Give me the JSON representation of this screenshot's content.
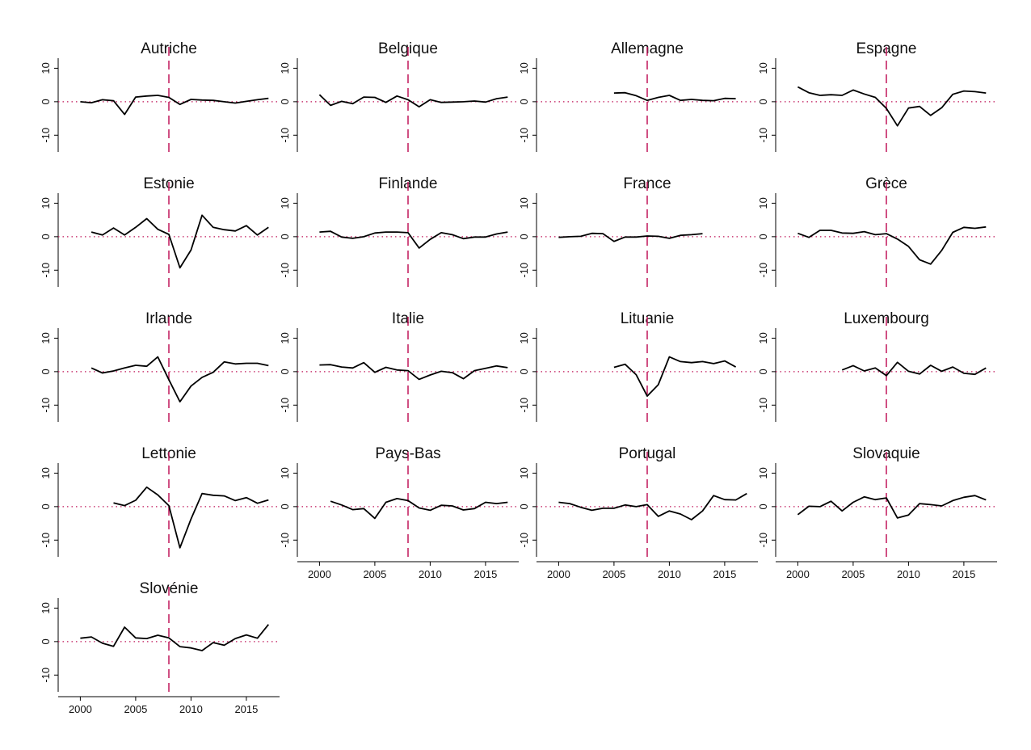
{
  "chart_data": {
    "type": "line",
    "layout": "small-multiples",
    "columns": 4,
    "x_range": [
      1998,
      2018
    ],
    "y_range": [
      -15,
      13
    ],
    "x_ticks": [
      2000,
      2005,
      2010,
      2015
    ],
    "y_ticks": [
      10,
      0,
      -10
    ],
    "reference_year": 2008,
    "reference_line_color": "#c0175a",
    "zero_line_color": "#c0175a",
    "series_color": "#000000",
    "panels": [
      {
        "title": "Autriche",
        "x_start": 2000,
        "values": [
          0,
          -0.3,
          0.6,
          0.3,
          -3.8,
          1.4,
          1.7,
          1.9,
          1.3,
          -0.8,
          0.7,
          0.5,
          0.4,
          0.0,
          -0.4,
          0.1,
          0.6,
          1.0
        ]
      },
      {
        "title": "Belgique",
        "x_start": 2000,
        "values": [
          2.1,
          -1.1,
          0.1,
          -0.6,
          1.4,
          1.3,
          -0.2,
          1.7,
          0.6,
          -1.5,
          0.6,
          -0.2,
          -0.1,
          0.0,
          0.2,
          -0.1,
          0.9,
          1.4
        ]
      },
      {
        "title": "Allemagne",
        "x_start": 2005,
        "values": [
          2.6,
          2.7,
          1.8,
          0.4,
          1.3,
          1.9,
          0.4,
          0.7,
          0.4,
          0.3,
          1.0,
          0.9
        ]
      },
      {
        "title": "Espagne",
        "x_start": 2000,
        "values": [
          4.4,
          2.7,
          1.9,
          2.1,
          1.9,
          3.5,
          2.3,
          1.3,
          -2.0,
          -7.2,
          -1.9,
          -1.4,
          -4.1,
          -1.8,
          2.2,
          3.2,
          3.0,
          2.6
        ]
      },
      {
        "title": "Estonie",
        "x_start": 2001,
        "values": [
          1.4,
          0.5,
          2.6,
          0.5,
          2.8,
          5.4,
          2.2,
          0.7,
          -9.3,
          -4.0,
          6.4,
          2.8,
          2.1,
          1.7,
          3.3,
          0.5,
          2.8
        ]
      },
      {
        "title": "Finlande",
        "x_start": 2000,
        "values": [
          1.4,
          1.6,
          -0.1,
          -0.5,
          0.0,
          1.1,
          1.4,
          1.4,
          1.2,
          -3.4,
          -0.8,
          1.2,
          0.6,
          -0.6,
          -0.1,
          -0.1,
          0.8,
          1.4
        ]
      },
      {
        "title": "France",
        "x_start": 2000,
        "values": [
          -0.2,
          0.0,
          0.1,
          1.0,
          0.9,
          -1.4,
          -0.1,
          -0.1,
          0.2,
          0.1,
          -0.5,
          0.4,
          0.6,
          0.9
        ]
      },
      {
        "title": "Grèce",
        "x_start": 2000,
        "values": [
          1.0,
          -0.2,
          1.9,
          1.9,
          1.1,
          1.0,
          1.5,
          0.6,
          0.9,
          -0.7,
          -2.9,
          -6.9,
          -8.2,
          -4.1,
          1.3,
          2.8,
          2.5,
          2.9
        ]
      },
      {
        "title": "Irlande",
        "x_start": 2001,
        "values": [
          1.1,
          -0.4,
          0.2,
          1.1,
          1.9,
          1.6,
          4.4,
          -2.4,
          -9.0,
          -4.3,
          -1.7,
          -0.2,
          2.9,
          2.3,
          2.5,
          2.5,
          1.8
        ]
      },
      {
        "title": "Italie",
        "x_start": 2000,
        "values": [
          2.0,
          2.1,
          1.4,
          1.1,
          2.7,
          -0.2,
          1.3,
          0.5,
          0.3,
          -2.3,
          -1.0,
          0.1,
          -0.3,
          -2.1,
          0.3,
          1.0,
          1.7,
          1.2
        ]
      },
      {
        "title": "Lituanie",
        "x_start": 2005,
        "values": [
          1.3,
          2.2,
          -0.9,
          -7.3,
          -3.9,
          4.4,
          3.0,
          2.7,
          3.0,
          2.4,
          3.2,
          1.4
        ]
      },
      {
        "title": "Luxembourg",
        "x_start": 2004,
        "values": [
          0.5,
          1.8,
          0.2,
          1.1,
          -1.2,
          2.8,
          0.1,
          -0.7,
          1.9,
          0.1,
          1.4,
          -0.5,
          -0.8,
          1.1
        ]
      },
      {
        "title": "Lettonie",
        "x_start": 2003,
        "values": [
          1.1,
          0.3,
          1.9,
          5.8,
          3.5,
          0.3,
          -12.3,
          -3.7,
          3.9,
          3.4,
          3.2,
          1.8,
          2.7,
          1.0,
          2.0
        ]
      },
      {
        "title": "Pays-Bas",
        "x_start": 2001,
        "values": [
          1.6,
          0.5,
          -0.9,
          -0.6,
          -3.5,
          1.3,
          2.4,
          1.8,
          -0.4,
          -1.1,
          0.4,
          0.2,
          -1.0,
          -0.6,
          1.3,
          0.9,
          1.3
        ]
      },
      {
        "title": "Portugal",
        "x_start": 2000,
        "values": [
          1.3,
          0.9,
          -0.2,
          -1.1,
          -0.5,
          -0.5,
          0.5,
          0.0,
          0.6,
          -2.9,
          -1.3,
          -2.2,
          -3.9,
          -1.3,
          3.3,
          2.1,
          2.0,
          3.9
        ]
      },
      {
        "title": "Slovaquie",
        "x_start": 2000,
        "values": [
          -2.4,
          0.1,
          0.0,
          1.6,
          -1.3,
          1.3,
          2.9,
          2.1,
          2.6,
          -3.4,
          -2.5,
          0.9,
          0.6,
          0.2,
          1.8,
          2.8,
          3.3,
          2.0
        ]
      },
      {
        "title": "Slovénie",
        "x_start": 2000,
        "values": [
          1.0,
          1.4,
          -0.5,
          -1.4,
          4.3,
          1.1,
          0.9,
          1.9,
          1.1,
          -1.5,
          -1.9,
          -2.7,
          -0.3,
          -1.1,
          0.9,
          2.0,
          1.0,
          5.1
        ]
      }
    ]
  }
}
